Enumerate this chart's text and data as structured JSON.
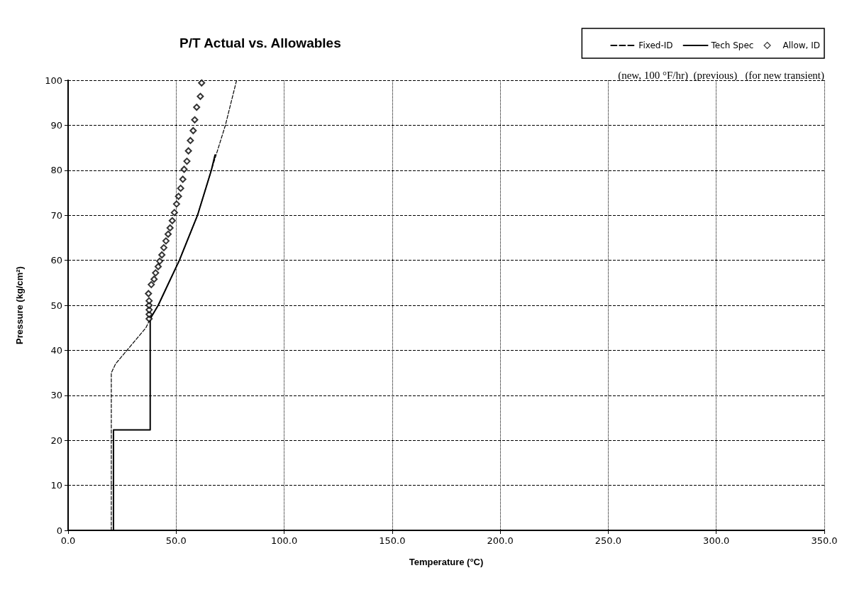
{
  "chart_data": {
    "type": "line",
    "title": "P/T Actual vs. Allowables",
    "xlabel": "Temperature (°C)",
    "ylabel": "Pressure (kg/cm²)",
    "annotations": [
      "(new, 100 °F/hr)  (previous)   (for new transient)"
    ],
    "xlim": [
      0,
      350
    ],
    "xticks": [
      {
        "value": 0,
        "label": "0.0"
      },
      {
        "value": 50,
        "label": "50.0"
      },
      {
        "value": 100,
        "label": "100.0"
      },
      {
        "value": 150,
        "label": "150.0"
      },
      {
        "value": 200,
        "label": "200.0"
      },
      {
        "value": 250,
        "label": "250.0"
      },
      {
        "value": 300,
        "label": "300.0"
      },
      {
        "value": 350,
        "label": "350.0"
      }
    ],
    "ylim": [
      0,
      100
    ],
    "yticks": [
      0,
      10,
      20,
      30,
      40,
      50,
      60,
      70,
      80,
      90,
      100
    ],
    "grid": true,
    "legend": "top right",
    "series": [
      {
        "name": "Fixed-ID",
        "line_style": "dashed",
        "color": "#000000",
        "x": [
          20,
          20,
          22,
          36,
          38,
          41.7,
          51.5,
          59.9,
          66.3,
          72.8,
          78
        ],
        "values": [
          0,
          35,
          37,
          45,
          47,
          50,
          60,
          70,
          80,
          90,
          100
        ]
      },
      {
        "name": "Tech Spec",
        "line_style": "solid",
        "color": "#000000",
        "x": [
          21,
          21,
          38,
          38,
          41.7,
          46.6,
          51.5,
          59.9,
          66.3,
          68
        ],
        "values": [
          0,
          22.3,
          22.3,
          47,
          50,
          55,
          60,
          70,
          80,
          83.4
        ]
      },
      {
        "name": "Allow, ID",
        "type": "scatter",
        "marker": "diamond",
        "color": "#000000",
        "x": [
          37.5,
          37.5,
          37.5,
          37.5,
          37.5,
          37.2,
          38.5,
          39.8,
          40.5,
          41.7,
          42.4,
          43.4,
          44.3,
          45.3,
          46.3,
          47.2,
          48.2,
          49.2,
          50.2,
          51.1,
          52.1,
          53.1,
          53.7,
          55.0,
          55.7,
          56.6,
          57.9,
          58.6,
          59.5,
          61.2,
          61.8
        ],
        "values": [
          47,
          48,
          49,
          50,
          51,
          52.6,
          54.6,
          55.8,
          57.2,
          58.6,
          59.8,
          61.2,
          62.8,
          64.3,
          65.8,
          67.2,
          68.8,
          70.6,
          72.5,
          74.2,
          76.0,
          78.0,
          80.2,
          82.0,
          84.3,
          86.6,
          88.8,
          91.2,
          94.0,
          96.4,
          99.4
        ]
      }
    ]
  }
}
